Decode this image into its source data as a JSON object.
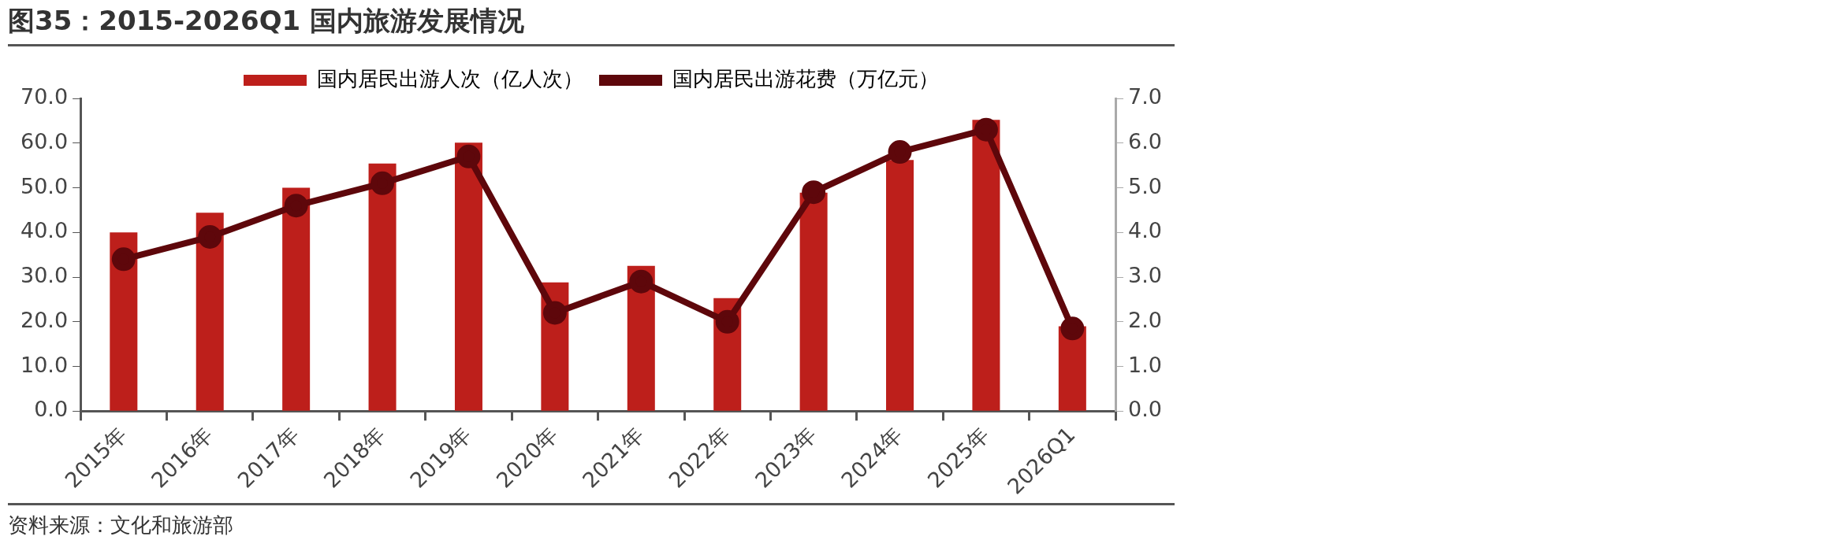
{
  "chart_data": {
    "type": "bar",
    "title": "图35：2015-2026Q1 国内旅游发展情况",
    "categories": [
      "2015年",
      "2016年",
      "2017年",
      "2018年",
      "2019年",
      "2020年",
      "2021年",
      "2022年",
      "2023年",
      "2024年",
      "2025年",
      "2026Q1"
    ],
    "series": [
      {
        "name": "国内居民出游人次（亿人次）",
        "color": "#bd1f1b",
        "values": [
          40.0,
          44.4,
          50.0,
          55.4,
          60.1,
          28.8,
          32.5,
          25.3,
          48.9,
          56.2,
          65.2,
          19.0
        ]
      },
      {
        "name": "国内居民出游花费（万亿元）",
        "type": "line",
        "axis": "y2",
        "color": "#5e070b",
        "values": [
          3.4,
          3.9,
          4.6,
          5.1,
          5.7,
          2.2,
          2.9,
          2.0,
          4.9,
          5.8,
          6.3,
          1.85
        ]
      }
    ],
    "ylim": [
      0,
      70
    ],
    "yticks": [
      {
        "value": 0,
        "label": "0.0"
      },
      {
        "value": 10,
        "label": "10.0"
      },
      {
        "value": 20,
        "label": "20.0"
      },
      {
        "value": 30,
        "label": "30.0"
      },
      {
        "value": 40,
        "label": "40.0"
      },
      {
        "value": 50,
        "label": "50.0"
      },
      {
        "value": 60,
        "label": "60.0"
      },
      {
        "value": 70,
        "label": "70.0"
      }
    ],
    "y2lim": [
      0,
      7
    ],
    "y2ticks": [
      {
        "value": 0,
        "label": "0.0"
      },
      {
        "value": 1,
        "label": "1.0"
      },
      {
        "value": 2,
        "label": "2.0"
      },
      {
        "value": 3,
        "label": "3.0"
      },
      {
        "value": 4,
        "label": "4.0"
      },
      {
        "value": 5,
        "label": "5.0"
      },
      {
        "value": 6,
        "label": "6.0"
      },
      {
        "value": 7,
        "label": "7.0"
      }
    ],
    "grid": false,
    "legend": "top",
    "marker": "circle",
    "annotations": [
      "资料来源：文化和旅游部"
    ]
  }
}
